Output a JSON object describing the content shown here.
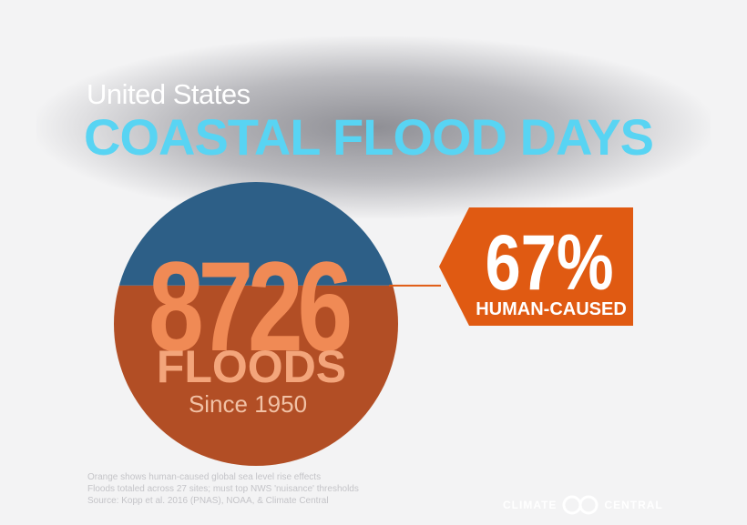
{
  "header": {
    "subtitle": "United States",
    "title": "COASTAL FLOOD DAYS"
  },
  "chart_data": {
    "type": "pie",
    "total": 8726,
    "total_label": "8726",
    "unit_label": "FLOODS",
    "period_label": "Since 1950",
    "human_caused_fraction": 0.67,
    "callout": {
      "value": "67%",
      "label": "HUMAN-CAUSED"
    },
    "colors": {
      "natural": "#2d5f87",
      "human_caused": "#b24e25",
      "number_fill": "#f08a55",
      "callout_bg": "#e05a12"
    }
  },
  "footer": {
    "lines": [
      "Orange shows human-caused global sea level rise effects",
      "Floods totaled across 27 sites; must top NWS 'nuisance' thresholds",
      "Source: Kopp et al. 2016 (PNAS), NOAA, & Climate Central"
    ]
  },
  "brand": {
    "left": "CLIMATE",
    "right": "CENTRAL",
    "icon": "climate-central-logo-icon"
  }
}
